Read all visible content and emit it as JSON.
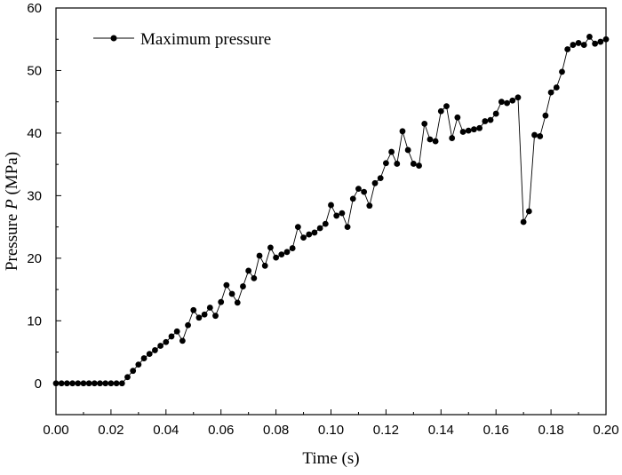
{
  "chart_data": {
    "type": "line",
    "title": "",
    "xlabel": "Time (s)",
    "ylabel": {
      "prefix": "Pressure ",
      "italic": "P",
      "suffix": " (MPa)"
    },
    "xlim": [
      0,
      0.2
    ],
    "ylim": [
      -5,
      60
    ],
    "x_ticks": [
      "0.00",
      "0.02",
      "0.04",
      "0.06",
      "0.08",
      "0.10",
      "0.12",
      "0.14",
      "0.16",
      "0.18",
      "0.20"
    ],
    "y_ticks": [
      "0",
      "10",
      "20",
      "30",
      "40",
      "50",
      "60"
    ],
    "grid": false,
    "legend": {
      "position": "top-left",
      "entries": [
        "Maximum pressure"
      ]
    },
    "series": [
      {
        "name": "Maximum pressure",
        "color": "#000000",
        "marker": "circle",
        "points": [
          [
            0.0,
            0.0
          ],
          [
            0.002,
            0.0
          ],
          [
            0.004,
            0.0
          ],
          [
            0.006,
            0.0
          ],
          [
            0.008,
            0.0
          ],
          [
            0.01,
            0.0
          ],
          [
            0.012,
            0.0
          ],
          [
            0.014,
            0.0
          ],
          [
            0.016,
            0.0
          ],
          [
            0.018,
            0.0
          ],
          [
            0.02,
            0.0
          ],
          [
            0.022,
            0.0
          ],
          [
            0.024,
            0.0
          ],
          [
            0.026,
            1.0
          ],
          [
            0.028,
            2.0
          ],
          [
            0.03,
            3.0
          ],
          [
            0.032,
            4.0
          ],
          [
            0.034,
            4.7
          ],
          [
            0.036,
            5.3
          ],
          [
            0.038,
            6.0
          ],
          [
            0.04,
            6.6
          ],
          [
            0.042,
            7.5
          ],
          [
            0.044,
            8.3
          ],
          [
            0.046,
            6.8
          ],
          [
            0.048,
            9.3
          ],
          [
            0.05,
            11.7
          ],
          [
            0.052,
            10.5
          ],
          [
            0.054,
            11.0
          ],
          [
            0.056,
            12.1
          ],
          [
            0.058,
            10.8
          ],
          [
            0.06,
            13.0
          ],
          [
            0.062,
            15.7
          ],
          [
            0.064,
            14.3
          ],
          [
            0.066,
            12.9
          ],
          [
            0.068,
            15.5
          ],
          [
            0.07,
            18.0
          ],
          [
            0.072,
            16.8
          ],
          [
            0.074,
            20.4
          ],
          [
            0.076,
            18.8
          ],
          [
            0.078,
            21.7
          ],
          [
            0.08,
            20.1
          ],
          [
            0.082,
            20.6
          ],
          [
            0.084,
            21.0
          ],
          [
            0.086,
            21.6
          ],
          [
            0.088,
            25.0
          ],
          [
            0.09,
            23.3
          ],
          [
            0.092,
            23.8
          ],
          [
            0.094,
            24.1
          ],
          [
            0.096,
            24.8
          ],
          [
            0.098,
            25.5
          ],
          [
            0.1,
            28.5
          ],
          [
            0.102,
            26.8
          ],
          [
            0.104,
            27.2
          ],
          [
            0.106,
            25.0
          ],
          [
            0.108,
            29.5
          ],
          [
            0.11,
            31.1
          ],
          [
            0.112,
            30.6
          ],
          [
            0.114,
            28.4
          ],
          [
            0.116,
            32.0
          ],
          [
            0.118,
            32.8
          ],
          [
            0.12,
            35.2
          ],
          [
            0.122,
            37.0
          ],
          [
            0.124,
            35.1
          ],
          [
            0.126,
            40.3
          ],
          [
            0.128,
            37.3
          ],
          [
            0.13,
            35.1
          ],
          [
            0.132,
            34.8
          ],
          [
            0.134,
            41.5
          ],
          [
            0.136,
            39.0
          ],
          [
            0.138,
            38.7
          ],
          [
            0.14,
            43.5
          ],
          [
            0.142,
            44.3
          ],
          [
            0.144,
            39.2
          ],
          [
            0.146,
            42.5
          ],
          [
            0.148,
            40.2
          ],
          [
            0.15,
            40.4
          ],
          [
            0.152,
            40.6
          ],
          [
            0.154,
            40.8
          ],
          [
            0.156,
            41.9
          ],
          [
            0.158,
            42.1
          ],
          [
            0.16,
            43.1
          ],
          [
            0.162,
            45.0
          ],
          [
            0.164,
            44.8
          ],
          [
            0.166,
            45.2
          ],
          [
            0.168,
            45.7
          ],
          [
            0.17,
            25.8
          ],
          [
            0.172,
            27.5
          ],
          [
            0.174,
            39.7
          ],
          [
            0.176,
            39.5
          ],
          [
            0.178,
            42.8
          ],
          [
            0.18,
            46.5
          ],
          [
            0.182,
            47.3
          ],
          [
            0.184,
            49.8
          ],
          [
            0.186,
            53.4
          ],
          [
            0.188,
            54.1
          ],
          [
            0.19,
            54.4
          ],
          [
            0.192,
            54.1
          ],
          [
            0.194,
            55.4
          ],
          [
            0.196,
            54.3
          ],
          [
            0.198,
            54.6
          ],
          [
            0.2,
            55.0
          ]
        ]
      }
    ]
  }
}
